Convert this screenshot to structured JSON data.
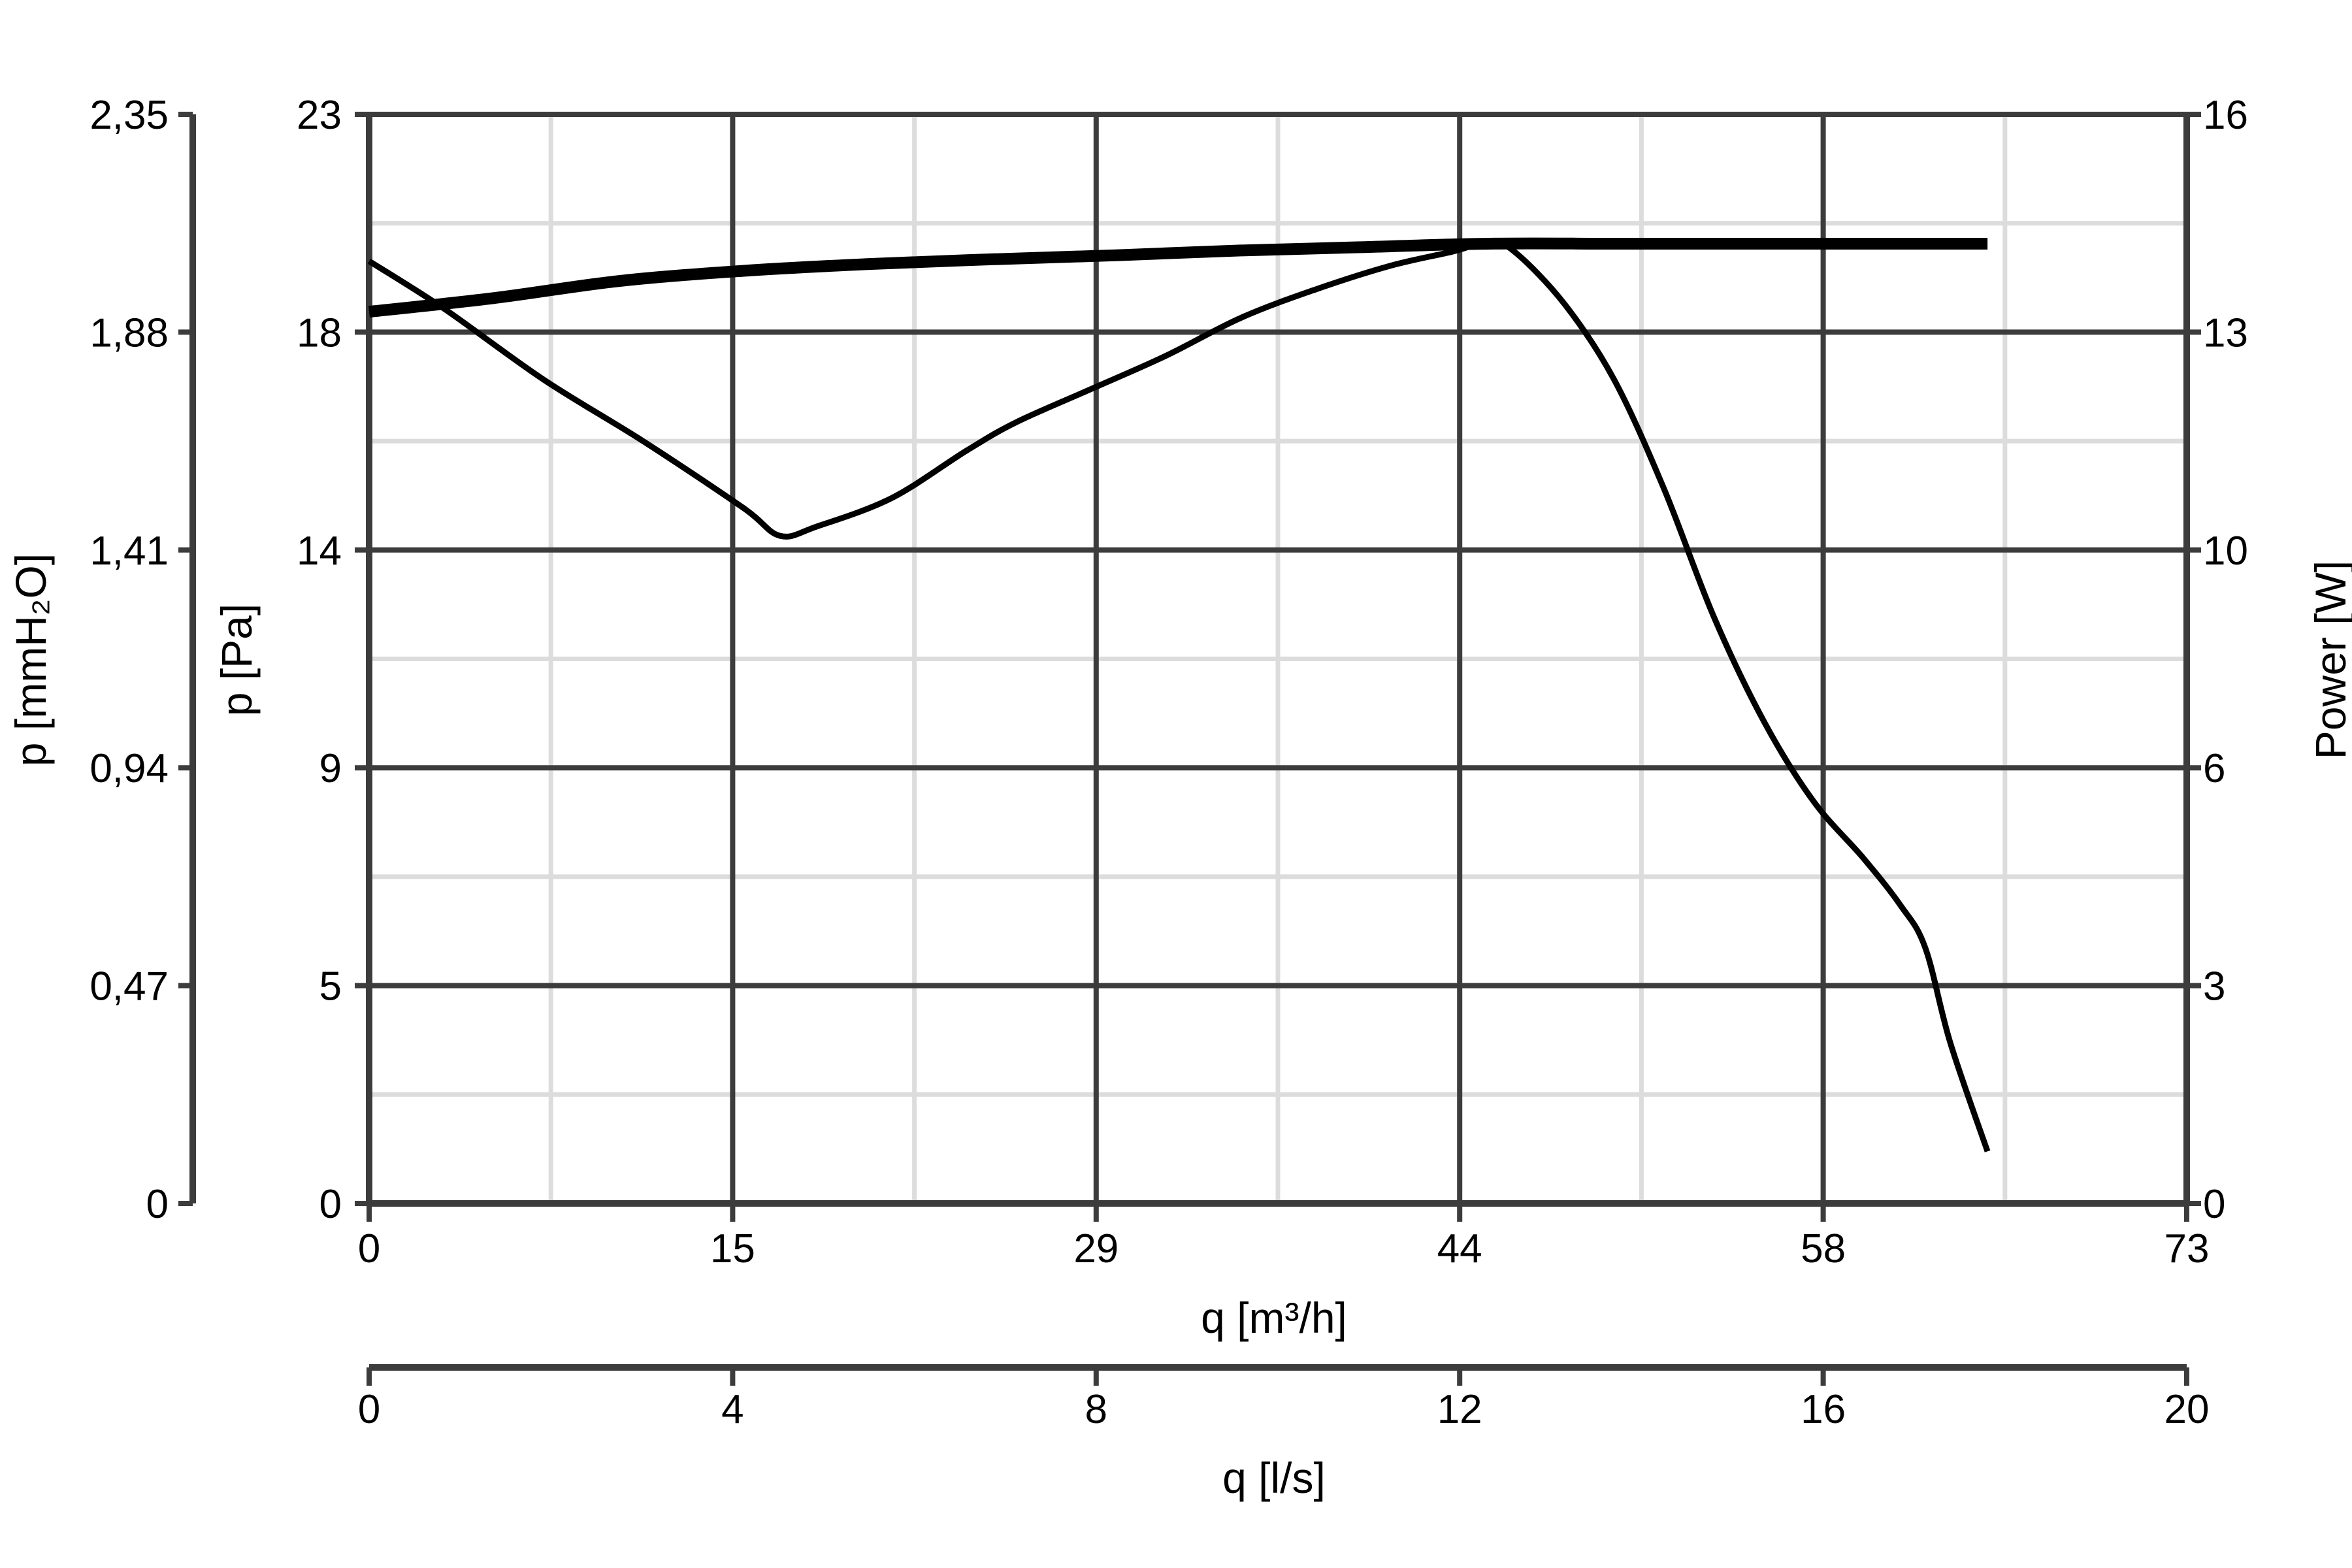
{
  "chart_data": {
    "type": "line",
    "title": "",
    "x_flow_m3h": {
      "label": "q [m³/h]",
      "range": [
        0,
        73
      ],
      "ticks": [
        "0",
        "15",
        "29",
        "44",
        "58",
        "73"
      ]
    },
    "x_flow_ls": {
      "label": "q [l/s]",
      "range": [
        0,
        20
      ],
      "ticks": [
        "0",
        "4",
        "8",
        "12",
        "16",
        "20"
      ]
    },
    "y_pressure_pa": {
      "label": "p [Pa]",
      "range": [
        0,
        23
      ],
      "ticks": [
        "0",
        "5",
        "9",
        "14",
        "18",
        "23"
      ]
    },
    "y_pressure_mmh2o": {
      "label": "p [mmH₂O]",
      "range": [
        0,
        2.35
      ],
      "ticks": [
        "0",
        "0,47",
        "0,94",
        "1,41",
        "1,88",
        "2,35"
      ]
    },
    "y_power_w": {
      "label": "Power [W]",
      "range": [
        0,
        16
      ],
      "ticks": [
        "0",
        "3",
        "6",
        "10",
        "13",
        "16"
      ]
    },
    "grid": true,
    "minor_grid": true,
    "colors": {
      "major_grid": "#3c3c3c",
      "minor_grid": "#dcdcdc",
      "axis": "#3c3c3c",
      "curve": "#000000"
    },
    "series": [
      {
        "axis": "pressure",
        "x": [
          0,
          3,
          7,
          11,
          15,
          16.5,
          18,
          21,
          24,
          26,
          29,
          32,
          35,
          38,
          41,
          43.5,
          45,
          46,
          48,
          50,
          52,
          54,
          56,
          58,
          60,
          61.5,
          62.5,
          63.5,
          65
        ],
        "values": [
          19.9,
          18.9,
          17.4,
          16.1,
          14.7,
          14.1,
          14.3,
          14.9,
          15.9,
          16.5,
          17.2,
          17.9,
          18.7,
          19.3,
          19.8,
          20.1,
          20.3,
          20.1,
          19.0,
          17.4,
          15.1,
          12.4,
          10.2,
          8.5,
          7.3,
          6.3,
          5.4,
          3.4,
          1.1
        ]
      },
      {
        "axis": "power",
        "x": [
          0,
          5,
          10,
          15,
          20,
          25,
          30,
          35,
          40,
          45,
          50,
          55,
          60,
          65
        ],
        "values": [
          13.1,
          13.3,
          13.55,
          13.7,
          13.8,
          13.87,
          13.93,
          14.0,
          14.05,
          14.1,
          14.1,
          14.1,
          14.1,
          14.1
        ]
      }
    ]
  }
}
